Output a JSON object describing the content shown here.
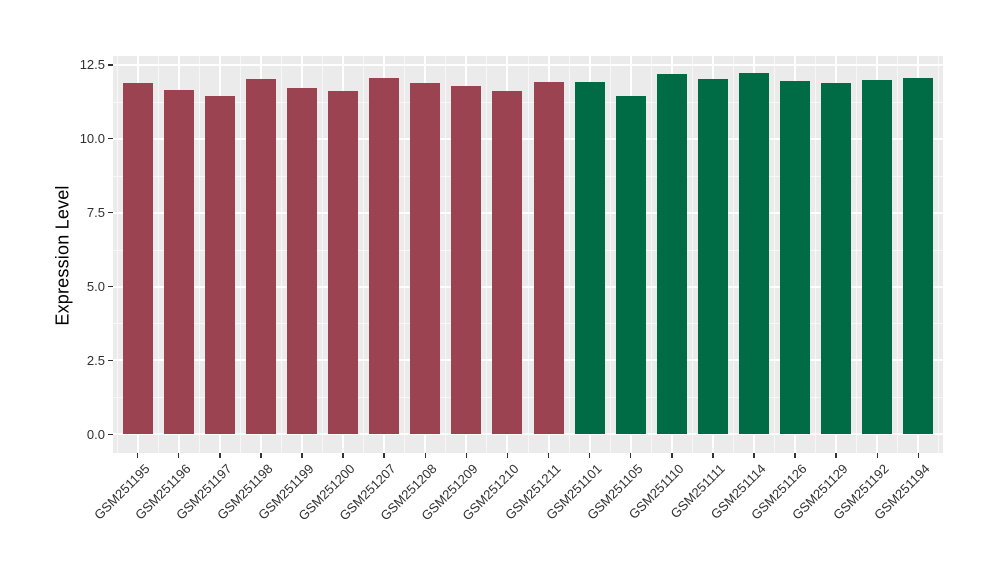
{
  "chart_data": {
    "type": "bar",
    "title": "",
    "xlabel": "",
    "ylabel": "Expression Level",
    "ylim": [
      0,
      12.5
    ],
    "yticks": [
      0,
      2.5,
      5,
      7.5,
      10,
      12.5
    ],
    "ytick_labels": [
      "0.0",
      "2.5",
      "5.0",
      "7.5",
      "10.0",
      "12.5"
    ],
    "yminor_ticks": [
      1.25,
      3.75,
      6.25,
      8.75,
      11.25
    ],
    "grid": "major and minor white gridlines on gray panel",
    "legend_position": "none",
    "x_tick_label_rotation_deg": 45,
    "colors": {
      "group_red": "#9C4351",
      "group_green": "#006C46",
      "panel_background": "#EBEBEB",
      "gridline": "#FFFFFF",
      "axis_text": "#303030"
    },
    "bars": [
      {
        "label": "GSM251195",
        "value": 11.9,
        "group": "group_red"
      },
      {
        "label": "GSM251196",
        "value": 11.64,
        "group": "group_red"
      },
      {
        "label": "GSM251197",
        "value": 11.45,
        "group": "group_red"
      },
      {
        "label": "GSM251198",
        "value": 12.01,
        "group": "group_red"
      },
      {
        "label": "GSM251199",
        "value": 11.73,
        "group": "group_red"
      },
      {
        "label": "GSM251200",
        "value": 11.6,
        "group": "group_red"
      },
      {
        "label": "GSM251207",
        "value": 12.05,
        "group": "group_red"
      },
      {
        "label": "GSM251208",
        "value": 11.9,
        "group": "group_red"
      },
      {
        "label": "GSM251209",
        "value": 11.77,
        "group": "group_red"
      },
      {
        "label": "GSM251210",
        "value": 11.62,
        "group": "group_red"
      },
      {
        "label": "GSM251211",
        "value": 11.92,
        "group": "group_red"
      },
      {
        "label": "GSM251101",
        "value": 11.92,
        "group": "group_green"
      },
      {
        "label": "GSM251105",
        "value": 11.43,
        "group": "group_green"
      },
      {
        "label": "GSM251110",
        "value": 12.18,
        "group": "group_green"
      },
      {
        "label": "GSM251111",
        "value": 12.03,
        "group": "group_green"
      },
      {
        "label": "GSM251114",
        "value": 12.21,
        "group": "group_green"
      },
      {
        "label": "GSM251126",
        "value": 11.96,
        "group": "group_green"
      },
      {
        "label": "GSM251129",
        "value": 11.9,
        "group": "group_green"
      },
      {
        "label": "GSM251192",
        "value": 11.97,
        "group": "group_green"
      },
      {
        "label": "GSM251194",
        "value": 12.05,
        "group": "group_green"
      }
    ]
  }
}
